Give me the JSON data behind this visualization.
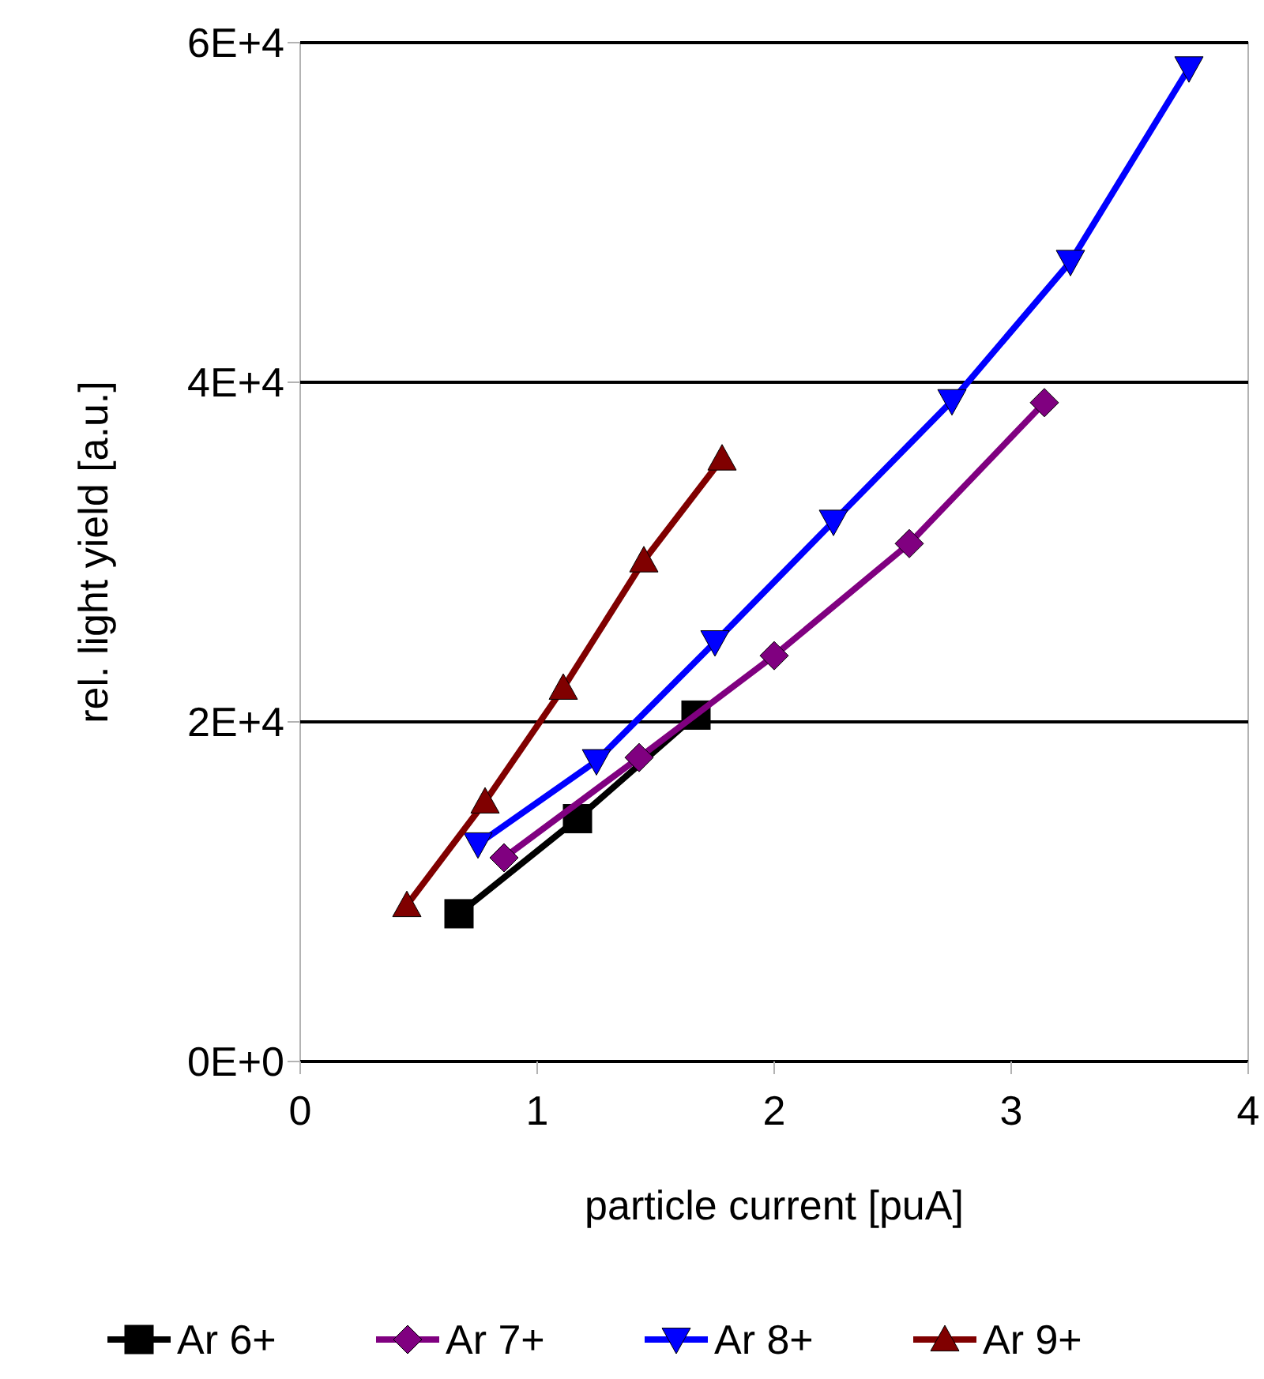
{
  "chart_data": {
    "type": "line",
    "xlabel": "particle current [puA]",
    "ylabel": "rel. light yield [a.u.]",
    "xlim": [
      0,
      4
    ],
    "xticks": [
      0,
      1,
      2,
      3,
      4
    ],
    "ylim": [
      0,
      60000
    ],
    "yticks": [
      {
        "value": 0,
        "label": "0E+0"
      },
      {
        "value": 20000,
        "label": "2E+4"
      },
      {
        "value": 40000,
        "label": "4E+4"
      },
      {
        "value": 60000,
        "label": "6E+4"
      }
    ],
    "grid": "y",
    "legend": "bottom",
    "line_style": "solid",
    "series": [
      {
        "name": "Ar 6+",
        "color": "#000000",
        "marker": "square",
        "x": [
          0.67,
          1.17,
          1.67
        ],
        "values": [
          8700,
          14300,
          20400
        ]
      },
      {
        "name": "Ar 7+",
        "color": "#800080",
        "marker": "diamond",
        "x": [
          0.86,
          1.43,
          2.0,
          2.57,
          3.14
        ],
        "values": [
          12000,
          17900,
          23900,
          30500,
          38800
        ]
      },
      {
        "name": "Ar 8+",
        "color": "#0000ff",
        "marker": "triangle-down",
        "x": [
          0.75,
          1.25,
          1.75,
          2.25,
          2.75,
          3.25,
          3.75
        ],
        "values": [
          12800,
          17700,
          24700,
          31800,
          38900,
          47100,
          58500
        ]
      },
      {
        "name": "Ar 9+",
        "color": "#800000",
        "marker": "triangle",
        "x": [
          0.45,
          0.78,
          1.11,
          1.45,
          1.78
        ],
        "values": [
          9200,
          15300,
          22000,
          29500,
          35500
        ]
      }
    ]
  }
}
